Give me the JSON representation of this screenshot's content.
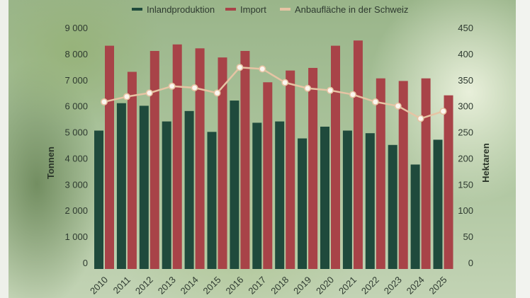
{
  "chart_data": {
    "type": "bar",
    "categories": [
      "2010",
      "2011",
      "2012",
      "2013",
      "2014",
      "2015",
      "2016",
      "2017",
      "2018",
      "2019",
      "2020",
      "2021",
      "2022",
      "2023",
      "2024",
      "2025"
    ],
    "series": [
      {
        "name": "Inlandproduktion",
        "kind": "bar",
        "axis": "left",
        "color": "#1f4a3c",
        "values": [
          5300,
          6350,
          6250,
          5650,
          6050,
          5250,
          6450,
          5600,
          5650,
          5000,
          5450,
          5300,
          5200,
          4750,
          4000,
          4950
        ]
      },
      {
        "name": "Import",
        "kind": "bar",
        "axis": "left",
        "color": "#a84348",
        "values": [
          8550,
          7550,
          8350,
          8600,
          8450,
          8100,
          8350,
          7150,
          7600,
          7700,
          8550,
          8750,
          7300,
          7200,
          7300,
          6650
        ]
      },
      {
        "name": "Anbaufläche in der Schweiz",
        "kind": "line",
        "axis": "right",
        "color": "#e6c4a4",
        "values": [
          320,
          330,
          337,
          350,
          347,
          337,
          386,
          383,
          357,
          346,
          342,
          334,
          320,
          312,
          288,
          302
        ]
      }
    ],
    "ylabel": "Tonnen",
    "y2label": "Hektaren",
    "ylim": [
      0,
      9000
    ],
    "y2lim": [
      0,
      450
    ],
    "yticks": [
      "0",
      "1 000",
      "2 000",
      "3 000",
      "4 000",
      "5 000",
      "6 000",
      "7 000",
      "8 000",
      "9 000"
    ],
    "y2ticks": [
      "0",
      "50",
      "100",
      "150",
      "200",
      "250",
      "300",
      "350",
      "400",
      "450"
    ],
    "legend_position": "top-center",
    "grid": false
  }
}
